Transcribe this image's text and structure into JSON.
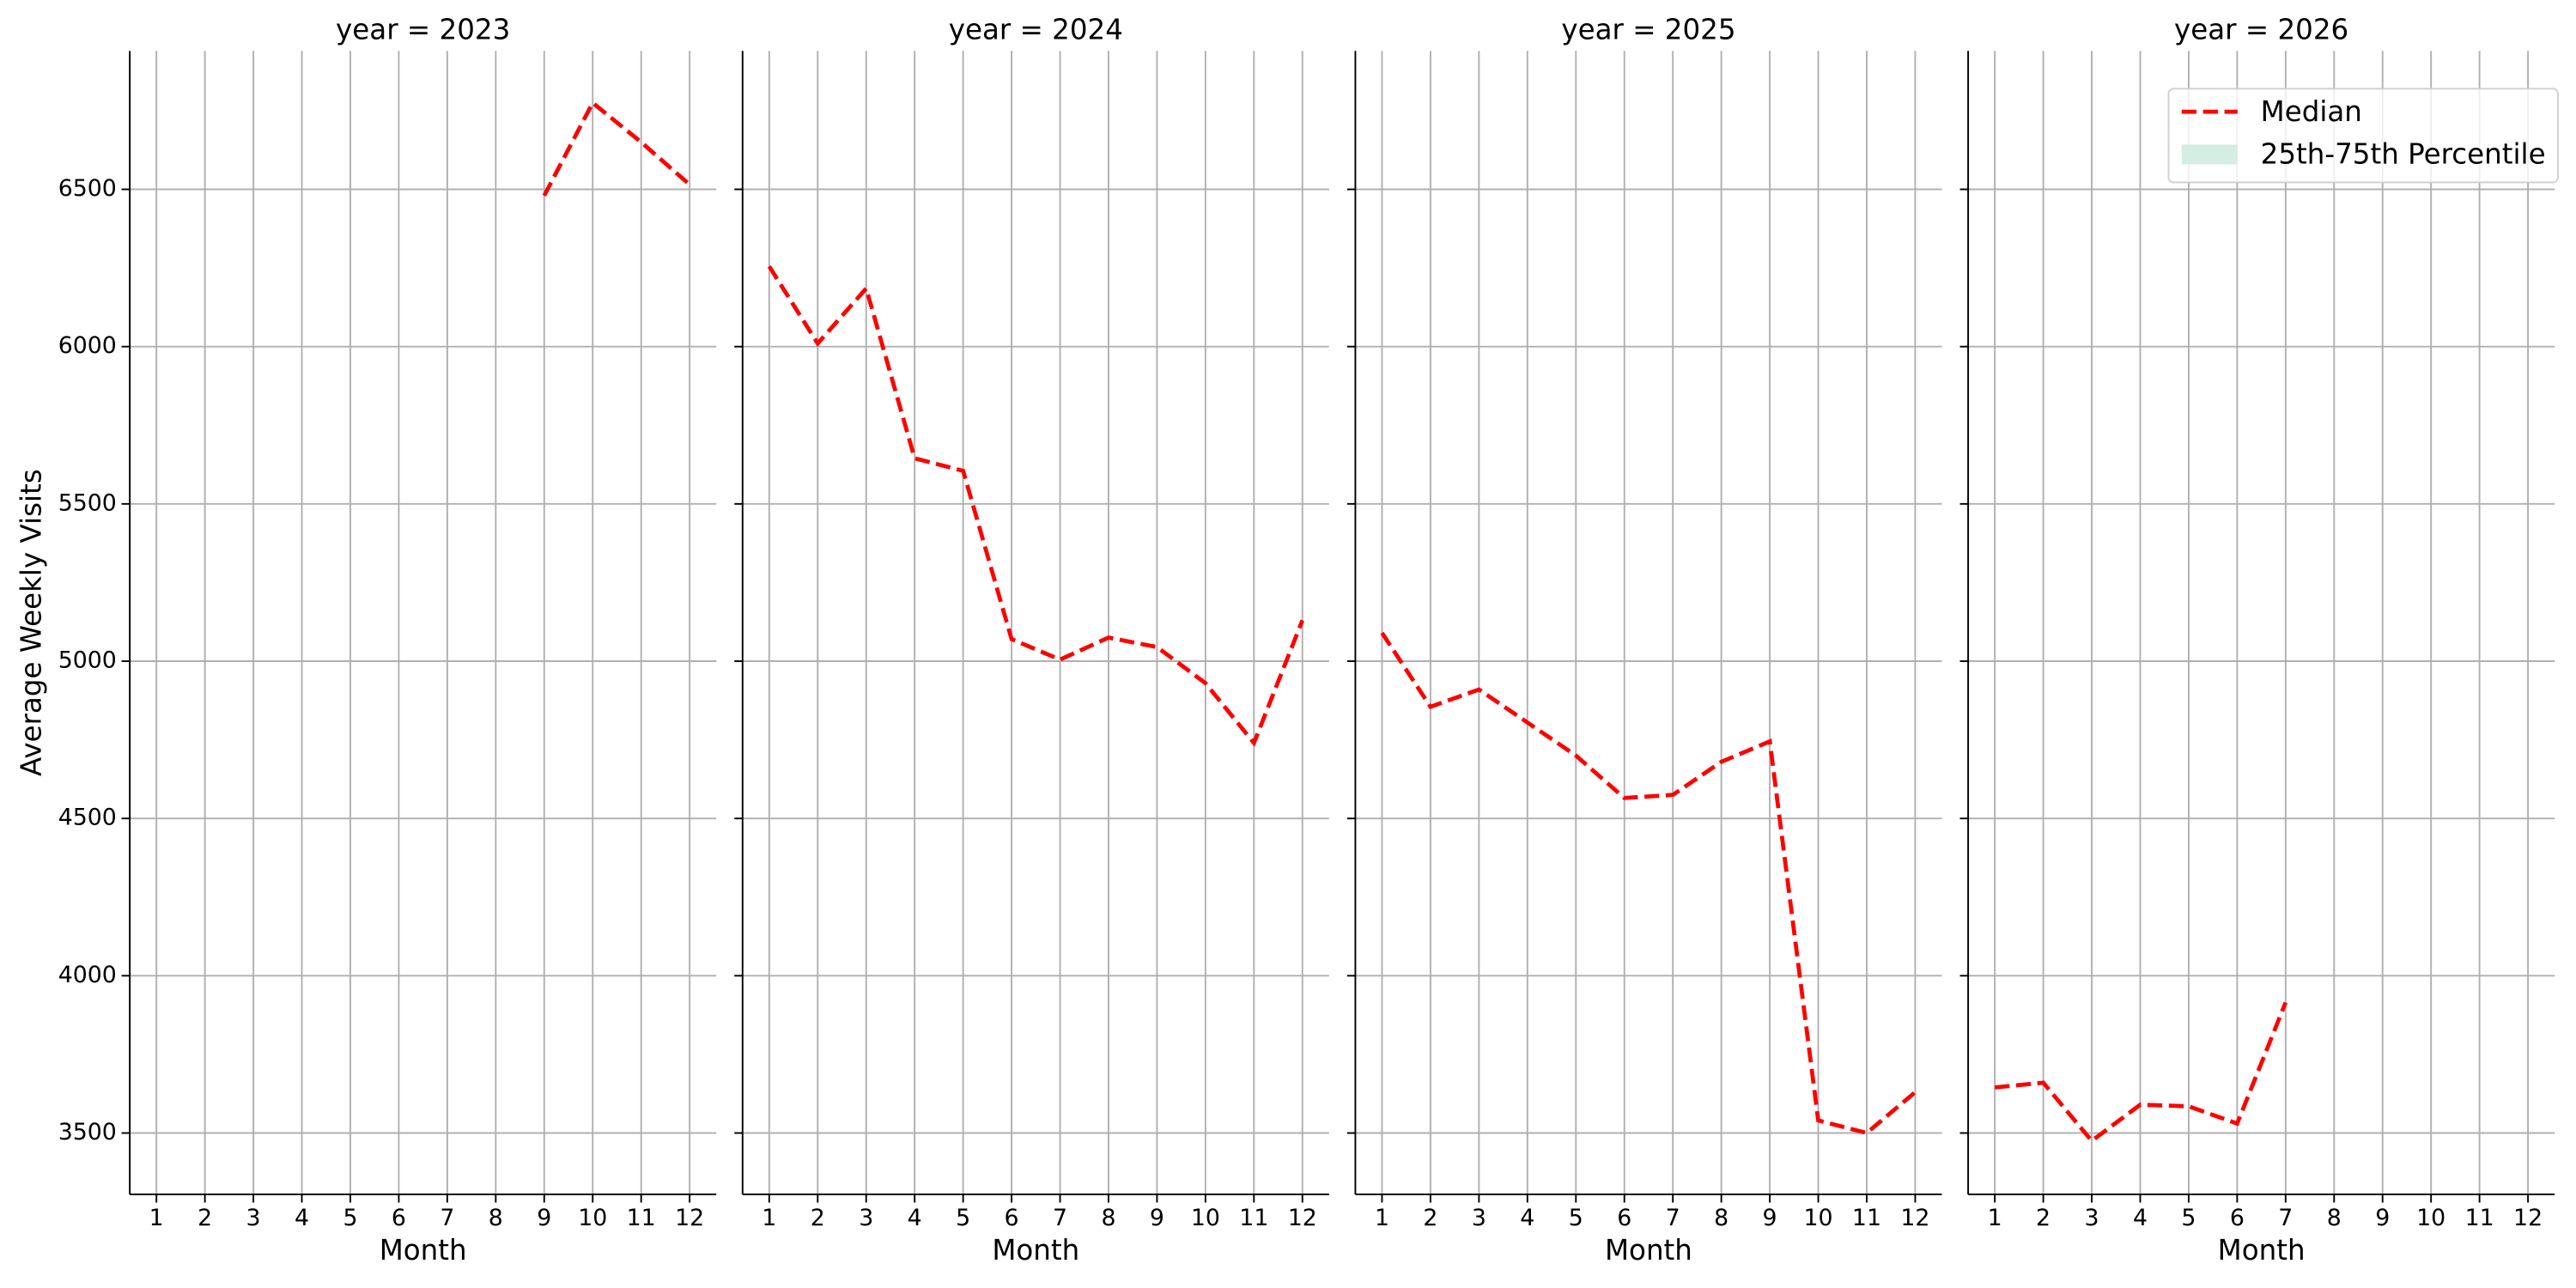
{
  "chart_data": {
    "type": "line",
    "ylabel": "Average Weekly Visits",
    "xlabel": "Month",
    "x": [
      1,
      2,
      3,
      4,
      5,
      6,
      7,
      8,
      9,
      10,
      11,
      12
    ],
    "xlim": [
      0.45,
      12.55
    ],
    "xticks": [
      1,
      2,
      3,
      4,
      5,
      6,
      7,
      8,
      9,
      10,
      11,
      12
    ],
    "ylim": [
      3305,
      6940
    ],
    "yticks": [
      3500,
      4000,
      4500,
      5000,
      5500,
      6000,
      6500
    ],
    "grid": true,
    "legend": "upper right",
    "series": [
      {
        "name": "Median",
        "color": "#ff0000",
        "dashed": true
      }
    ],
    "band": {
      "name": "25th-75th Percentile",
      "color": "#d4eee4"
    },
    "facets": [
      {
        "title": "year = 2023",
        "values": [
          null,
          null,
          null,
          null,
          null,
          null,
          null,
          null,
          6480,
          6775,
          6650,
          6515
        ]
      },
      {
        "title": "year = 2024",
        "values": [
          6255,
          6010,
          6185,
          5645,
          5605,
          5070,
          5005,
          5075,
          5045,
          4930,
          4740,
          5130
        ]
      },
      {
        "title": "year = 2025",
        "values": [
          5090,
          4855,
          4910,
          4805,
          4700,
          4565,
          4575,
          4680,
          4745,
          3540,
          3500,
          3630
        ]
      },
      {
        "title": "year = 2026",
        "values": [
          3645,
          3660,
          3475,
          3590,
          3585,
          3530,
          3915,
          null,
          null,
          null,
          null,
          null
        ]
      }
    ]
  }
}
